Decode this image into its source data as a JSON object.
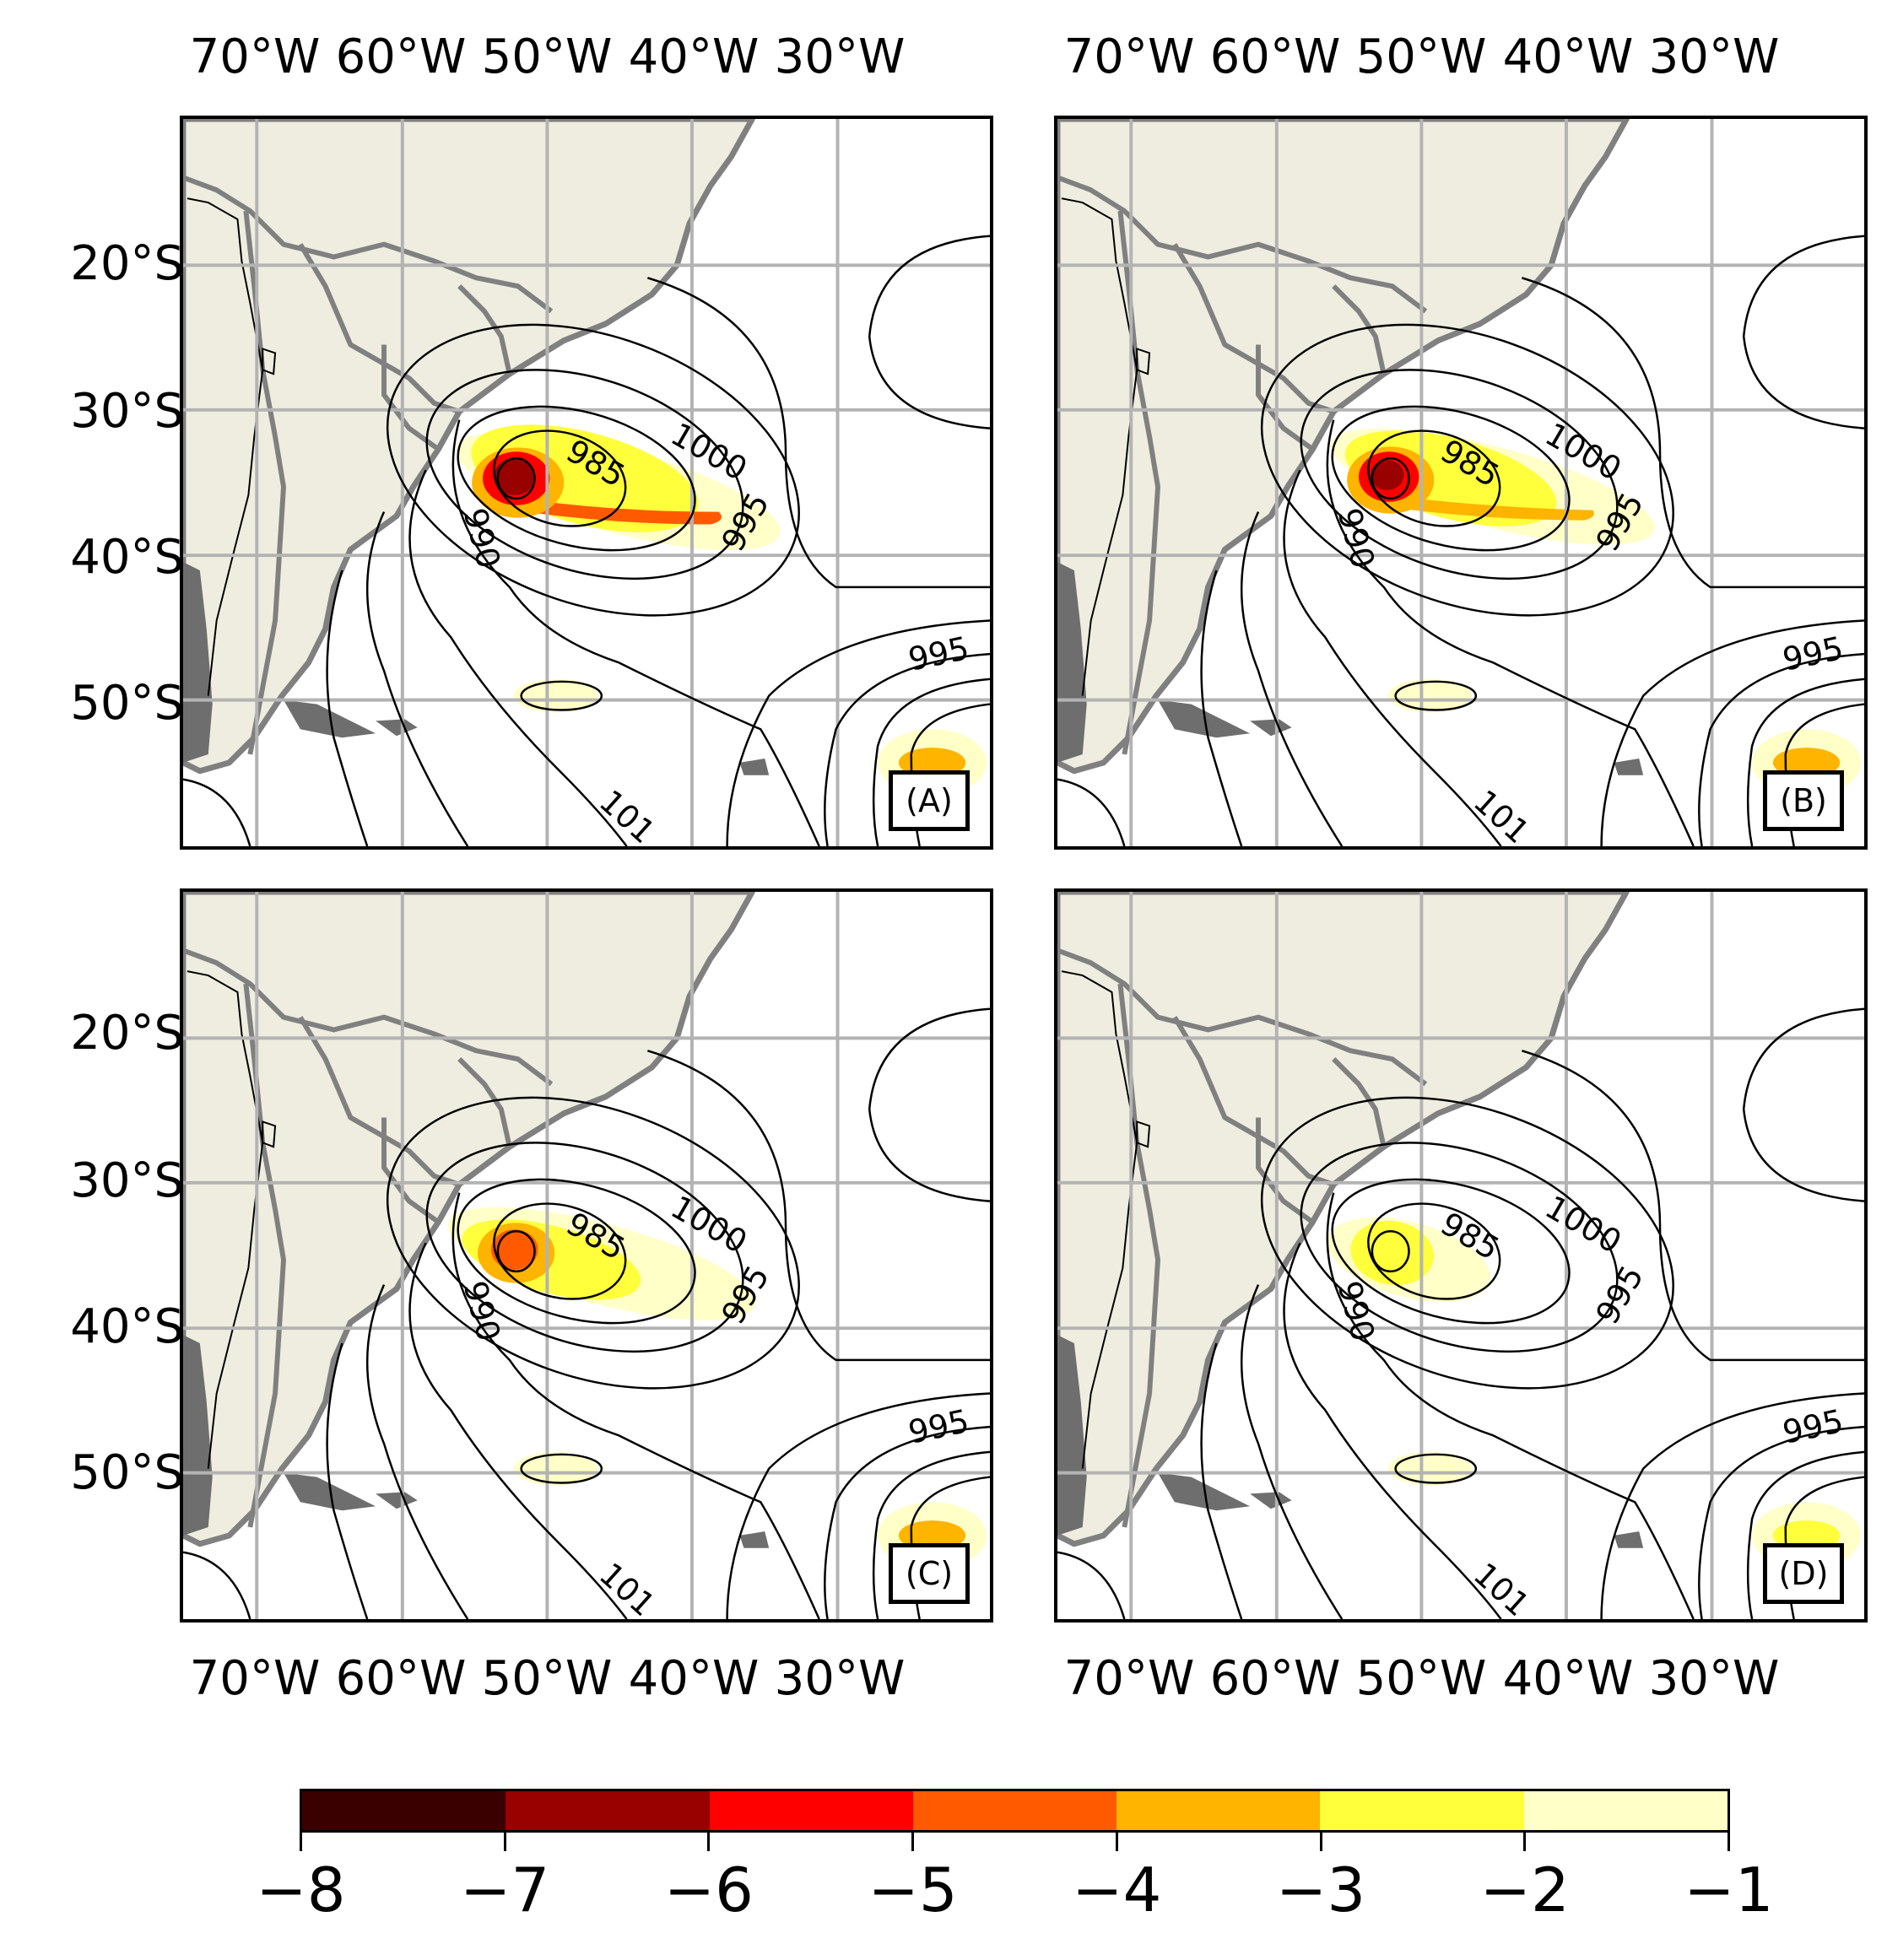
{
  "axes": {
    "lon_ticks": [
      "70°W",
      "60°W",
      "50°W",
      "40°W",
      "30°W"
    ],
    "lat_ticks": [
      "20°S",
      "30°S",
      "40°S",
      "50°S"
    ]
  },
  "contour_labels": [
    "1000",
    "985",
    "990",
    "995",
    "995",
    "101"
  ],
  "panels": [
    {
      "tag": "(A)",
      "intensity": 1.0
    },
    {
      "tag": "(B)",
      "intensity": 0.85
    },
    {
      "tag": "(C)",
      "intensity": 0.6
    },
    {
      "tag": "(D)",
      "intensity": 0.25
    }
  ],
  "colors": {
    "land": "#eeeddf",
    "border": "#808080",
    "andes": "#6e6e6e",
    "grid": "#b3b3b3",
    "contour": "#000000"
  },
  "colorbar": {
    "ticks": [
      "−8",
      "−7",
      "−6",
      "−5",
      "−4",
      "−3",
      "−2",
      "−1"
    ],
    "bins": [
      "#3a0000",
      "#990000",
      "#ff0000",
      "#ff5a00",
      "#ffb400",
      "#ffff3c",
      "#ffffc8"
    ]
  }
}
